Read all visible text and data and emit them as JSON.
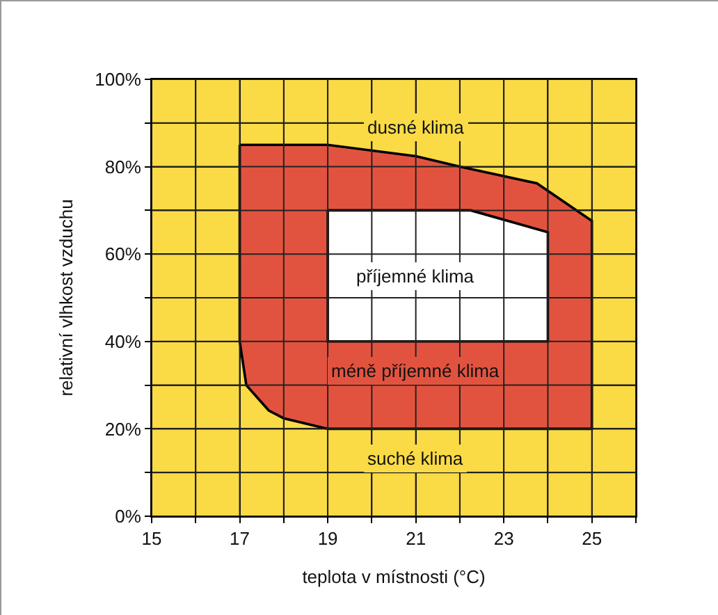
{
  "chart_data": {
    "type": "area",
    "xlabel": "teplota v místnosti (°C)",
    "ylabel": "relativní vlhkost vzduchu",
    "series": [
      {
        "color": "#e2533f",
        "x": [
          17,
          19,
          21,
          22,
          23.75,
          25,
          25,
          19,
          18,
          17.66,
          17.15,
          17,
          17
        ],
        "values": [
          85,
          85,
          82.4,
          80,
          76.2,
          67.6,
          20,
          20,
          22.4,
          24.2,
          30,
          40,
          85
        ]
      },
      {
        "color": "#ffffff",
        "x": [
          19,
          22.25,
          24,
          24,
          19,
          19
        ],
        "values": [
          70,
          70,
          65,
          40,
          40,
          70
        ]
      }
    ],
    "annotations": [
      "dusné klima",
      "příjemné klima",
      "méně příjemné klima",
      "suché klima"
    ],
    "xlim": [
      15,
      26
    ],
    "ylim": [
      0,
      100
    ],
    "xticks": [
      15,
      {
        "value": 16,
        "label": null
      },
      17,
      {
        "value": 18,
        "label": null
      },
      19,
      {
        "value": 20,
        "label": null
      },
      21,
      {
        "value": 22,
        "label": null
      },
      23,
      {
        "value": 24,
        "label": null
      },
      25,
      {
        "value": 26,
        "label": null
      }
    ],
    "yticks": [
      {
        "value": 0,
        "label": "0%"
      },
      {
        "value": 10,
        "label": null
      },
      {
        "value": 20,
        "label": "20%"
      },
      {
        "value": 30,
        "label": null
      },
      {
        "value": 40,
        "label": "40%"
      },
      {
        "value": 50,
        "label": null
      },
      {
        "value": 60,
        "label": "60%"
      },
      {
        "value": 70,
        "label": null
      },
      {
        "value": 80,
        "label": "80%"
      },
      {
        "value": 90,
        "label": null
      },
      {
        "value": 100,
        "label": "100%"
      }
    ],
    "grid": true,
    "line_style": "solid",
    "marker": "none"
  }
}
